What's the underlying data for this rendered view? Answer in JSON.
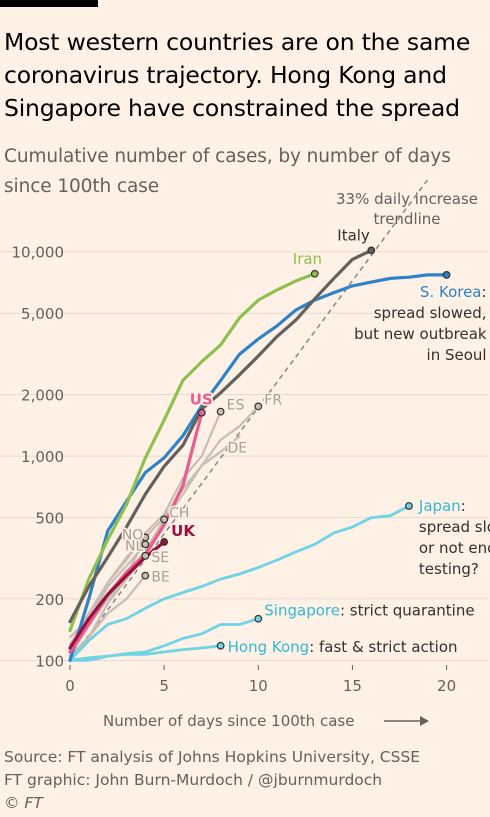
{
  "header": {
    "title_lines": [
      "Most western countries are on the same",
      "coronavirus trajectory. Hong Kong and",
      "Singapore have constrained the spread"
    ],
    "subtitle_lines": [
      "Cumulative number of cases, by number of days",
      "since 100th case"
    ]
  },
  "footer": {
    "source": "Source: FT analysis of Johns Hopkins University, CSSE",
    "graphic": "FT graphic: John Burn-Murdoch / @jburnmurdoch",
    "copyright": "© FT"
  },
  "colors": {
    "background": "#fff1e5",
    "grid": "#e6d9ce",
    "axis_text": "#66605c",
    "trend": "#8a8580"
  },
  "chart_data": {
    "type": "line",
    "x_scale": "linear",
    "y_scale": "log",
    "xlim": [
      0,
      20.5
    ],
    "ylim": [
      95,
      16000
    ],
    "xlabel": "Number of days since 100th case",
    "x_ticks": [
      0,
      5,
      10,
      15,
      20
    ],
    "y_ticks": [
      100,
      200,
      500,
      1000,
      2000,
      5000,
      10000
    ],
    "y_tick_labels": [
      "100",
      "200",
      "500",
      "1,000",
      "2,000",
      "5,000",
      "10,000"
    ],
    "grid": "horizontal",
    "trendline": {
      "label_lines": [
        "33% daily increase",
        "trendline"
      ],
      "daily_growth": 1.33,
      "start": 100,
      "x_end": 19.2
    },
    "series": [
      {
        "id": "de",
        "label": "DE",
        "color": "#c8bdb4",
        "width": 2.2,
        "end_marker": false,
        "x": [
          0,
          1,
          2,
          3,
          4,
          5,
          6,
          7,
          8,
          9
        ],
        "y": [
          130,
          160,
          200,
          260,
          400,
          500,
          690,
          900,
          1050,
          1250
        ]
      },
      {
        "id": "be",
        "label": "BE",
        "color": "#c8bdb4",
        "width": 2.2,
        "end_marker": true,
        "x": [
          0,
          1,
          2,
          3,
          4
        ],
        "y": [
          105,
          130,
          170,
          200,
          260
        ]
      },
      {
        "id": "se",
        "label": "SE",
        "color": "#c8bdb4",
        "width": 2.2,
        "end_marker": true,
        "x": [
          0,
          1,
          2,
          3,
          4
        ],
        "y": [
          105,
          150,
          200,
          250,
          325
        ]
      },
      {
        "id": "nl",
        "label": "NL",
        "color": "#c8bdb4",
        "width": 2.2,
        "end_marker": true,
        "x": [
          0,
          1,
          2,
          3,
          4
        ],
        "y": [
          110,
          155,
          230,
          290,
          370
        ]
      },
      {
        "id": "no",
        "label": "NO",
        "color": "#c8bdb4",
        "width": 2.2,
        "end_marker": true,
        "x": [
          0,
          1,
          2,
          3,
          4
        ],
        "y": [
          115,
          160,
          240,
          320,
          400
        ]
      },
      {
        "id": "ch",
        "label": "CH",
        "color": "#c8bdb4",
        "width": 2.2,
        "end_marker": true,
        "x": [
          0,
          1,
          2,
          3,
          4,
          5
        ],
        "y": [
          100,
          160,
          200,
          270,
          340,
          490
        ]
      },
      {
        "id": "es",
        "label": "ES",
        "color": "#c8bdb4",
        "width": 2.2,
        "end_marker": true,
        "x": [
          0,
          1,
          2,
          3,
          4,
          5,
          6,
          7,
          8
        ],
        "y": [
          120,
          170,
          240,
          310,
          420,
          520,
          780,
          1000,
          1650
        ]
      },
      {
        "id": "fr",
        "label": "FR",
        "color": "#c8bdb4",
        "width": 2.2,
        "end_marker": true,
        "x": [
          0,
          1,
          2,
          3,
          4,
          5,
          6,
          7,
          8,
          9,
          10
        ],
        "y": [
          100,
          130,
          190,
          250,
          350,
          480,
          650,
          900,
          1200,
          1400,
          1750
        ]
      },
      {
        "id": "hongkong",
        "label": "Hong Kong",
        "label_suffix": ": fast & strict action",
        "color": "#6fd3e6",
        "width": 2.8,
        "end_marker": true,
        "x": [
          0,
          1,
          2,
          3,
          4,
          5,
          6,
          7,
          8
        ],
        "y": [
          100,
          100,
          105,
          107,
          107,
          110,
          113,
          115,
          118
        ]
      },
      {
        "id": "singapore",
        "label": "Singapore",
        "label_suffix": ": strict quarantine",
        "color": "#6fd3e6",
        "width": 2.8,
        "end_marker": true,
        "x": [
          0,
          1,
          2,
          3,
          4,
          5,
          6,
          7,
          8,
          9,
          10
        ],
        "y": [
          100,
          103,
          105,
          108,
          110,
          118,
          128,
          135,
          150,
          150,
          160
        ]
      },
      {
        "id": "japan",
        "label": "Japan",
        "label_suffix": ":",
        "note_lines": [
          "spread slowed",
          "or not enough",
          "testing?"
        ],
        "color": "#6fd3e6",
        "width": 2.8,
        "end_marker": true,
        "x": [
          0,
          1,
          2,
          3,
          4,
          5,
          6,
          7,
          8,
          9,
          10,
          11,
          12,
          13,
          14,
          15,
          16,
          17,
          18
        ],
        "y": [
          100,
          125,
          150,
          160,
          180,
          200,
          215,
          230,
          250,
          265,
          285,
          310,
          340,
          370,
          420,
          450,
          500,
          510,
          570
        ]
      },
      {
        "id": "skorea",
        "label": "S. Korea",
        "label_suffix": ":",
        "note_lines": [
          "spread slowed,",
          "but new outbreak",
          "in Seoul"
        ],
        "color": "#2e83c8",
        "width": 3.2,
        "end_marker": true,
        "x": [
          0,
          1,
          2,
          3,
          4,
          5,
          6,
          7,
          8,
          9,
          10,
          11,
          12,
          13,
          14,
          15,
          16,
          17,
          18,
          19,
          20
        ],
        "y": [
          100,
          200,
          430,
          600,
          830,
          980,
          1260,
          1760,
          2340,
          3150,
          3740,
          4340,
          5190,
          5800,
          6300,
          6800,
          7100,
          7400,
          7500,
          7700,
          7700
        ]
      },
      {
        "id": "iran",
        "label": "Iran",
        "color": "#8fbf4f",
        "width": 3.2,
        "end_marker": true,
        "x": [
          0,
          1,
          2,
          3,
          4,
          5,
          6,
          7,
          8,
          9,
          10,
          11,
          12,
          13
        ],
        "y": [
          140,
          250,
          390,
          580,
          980,
          1500,
          2350,
          2900,
          3500,
          4750,
          5800,
          6500,
          7200,
          7800
        ]
      },
      {
        "id": "italy",
        "label": "Italy",
        "color": "#66605c",
        "width": 3.2,
        "end_marker": true,
        "x": [
          0,
          1,
          2,
          3,
          4,
          5,
          6,
          7,
          8,
          9,
          10,
          11,
          12,
          13,
          14,
          15,
          16
        ],
        "y": [
          155,
          230,
          320,
          450,
          650,
          890,
          1130,
          1700,
          2040,
          2500,
          3090,
          3850,
          4640,
          5880,
          7380,
          9170,
          10150
        ]
      },
      {
        "id": "us",
        "label": "US",
        "color": "#e95d8c",
        "width": 3.2,
        "end_marker": true,
        "x": [
          0,
          1,
          2,
          3,
          4,
          5,
          6,
          7
        ],
        "y": [
          110,
          150,
          210,
          270,
          330,
          460,
          720,
          1630
        ]
      },
      {
        "id": "uk",
        "label": "UK",
        "color": "#990f3d",
        "width": 3.2,
        "end_marker": true,
        "x": [
          0,
          1,
          2,
          3,
          4,
          5
        ],
        "y": [
          115,
          160,
          210,
          260,
          320,
          380
        ]
      }
    ]
  }
}
